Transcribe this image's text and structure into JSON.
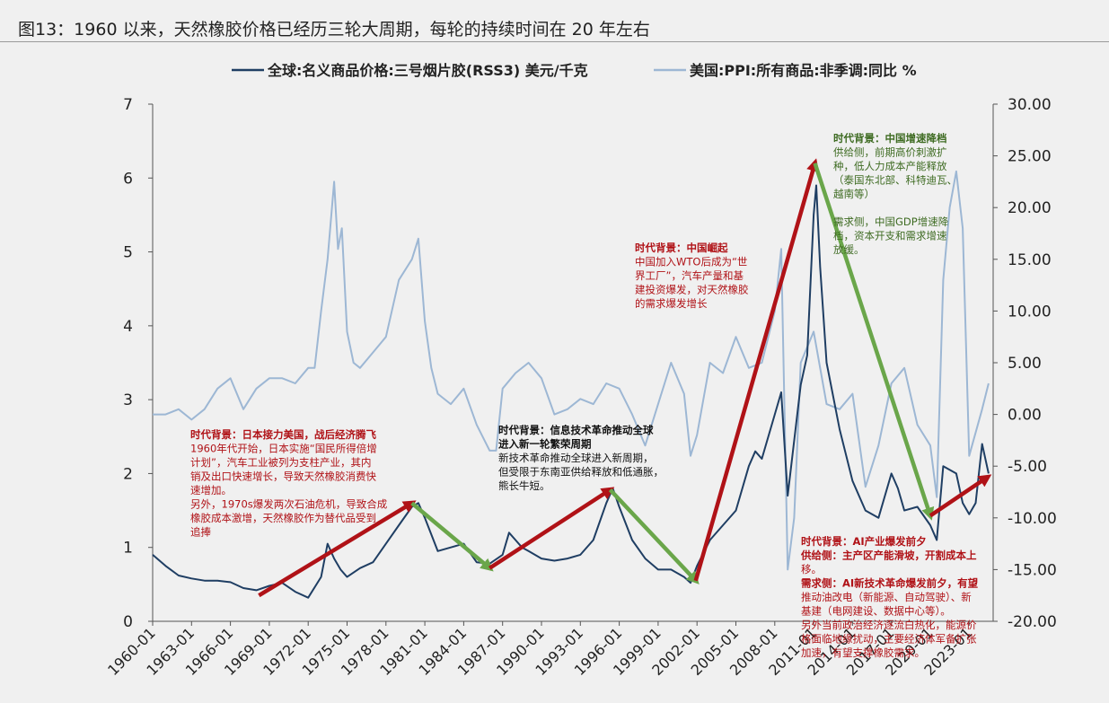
{
  "title": "图13：1960 以来，天然橡胶价格已经历三轮大周期，每轮的持续时间在 20 年左右",
  "colors": {
    "rubber": "#1f3e63",
    "ppi": "#9db7d4",
    "up_arrow": "#b01217",
    "down_arrow": "#6aa64a",
    "red_text": "#b01217",
    "green_text": "#3e6b22",
    "dark_text": "#111111"
  },
  "chart_data": {
    "type": "line",
    "xlabel": "",
    "ylabel": "",
    "y2label": "",
    "categories": [
      "1960-01",
      "1963-01",
      "1966-01",
      "1969-01",
      "1972-01",
      "1975-01",
      "1978-01",
      "1981-01",
      "1984-01",
      "1987-01",
      "1990-01",
      "1993-01",
      "1996-01",
      "1999-01",
      "2002-01",
      "2005-01",
      "2008-01",
      "2011-01",
      "2014-01",
      "2017-01",
      "2020-01",
      "2023-01"
    ],
    "ylim": [
      0,
      7
    ],
    "y_ticks": [
      "0",
      "1",
      "2",
      "3",
      "4",
      "5",
      "6",
      "7"
    ],
    "y2lim": [
      -20,
      30
    ],
    "y2_ticks": [
      "-20.00",
      "-15.00",
      "-10.00",
      "-5.00",
      "0.00",
      "5.00",
      "10.00",
      "15.00",
      "20.00",
      "25.00",
      "30.00"
    ],
    "legend_position": "top",
    "series": [
      {
        "name": "全球:名义商品价格:三号烟片胶(RSS3) 美元/千克",
        "axis": "left",
        "x": [
          1960,
          1961,
          1962,
          1963,
          1964,
          1965,
          1966,
          1967,
          1968,
          1969,
          1970,
          1971,
          1972,
          1973,
          1973.5,
          1974,
          1974.5,
          1975,
          1976,
          1977,
          1978,
          1979,
          1980,
          1980.5,
          1981,
          1982,
          1983,
          1984,
          1985,
          1986,
          1987,
          1987.5,
          1988,
          1988.5,
          1989,
          1990,
          1991,
          1992,
          1993,
          1994,
          1995,
          1995.5,
          1996,
          1997,
          1998,
          1999,
          2000,
          2001,
          2001.5,
          2002,
          2003,
          2004,
          2005,
          2006,
          2006.5,
          2007,
          2008,
          2008.5,
          2009,
          2010,
          2010.5,
          2011,
          2011.2,
          2011.5,
          2012,
          2013,
          2014,
          2015,
          2016,
          2017,
          2017.5,
          2018,
          2019,
          2020,
          2020.5,
          2021,
          2022,
          2022.5,
          2023,
          2023.5,
          2024,
          2024.5
        ],
        "y": [
          0.9,
          0.75,
          0.62,
          0.58,
          0.55,
          0.55,
          0.53,
          0.45,
          0.42,
          0.48,
          0.52,
          0.4,
          0.32,
          0.6,
          1.05,
          0.85,
          0.7,
          0.6,
          0.72,
          0.8,
          1.05,
          1.3,
          1.55,
          1.6,
          1.4,
          0.95,
          1.0,
          1.05,
          0.8,
          0.78,
          0.9,
          1.2,
          1.1,
          1.0,
          0.95,
          0.85,
          0.82,
          0.85,
          0.9,
          1.1,
          1.6,
          1.8,
          1.55,
          1.1,
          0.85,
          0.7,
          0.7,
          0.6,
          0.52,
          0.75,
          1.1,
          1.3,
          1.5,
          2.1,
          2.3,
          2.2,
          2.8,
          3.1,
          1.7,
          3.2,
          3.6,
          5.5,
          5.9,
          4.8,
          3.5,
          2.6,
          1.9,
          1.5,
          1.4,
          2.0,
          1.8,
          1.5,
          1.55,
          1.3,
          1.1,
          2.1,
          2.0,
          1.6,
          1.45,
          1.6,
          2.4,
          2.0
        ]
      },
      {
        "name": "美国:PPI:所有商品:非季调:同比 %",
        "axis": "right",
        "x": [
          1960,
          1961,
          1962,
          1963,
          1964,
          1965,
          1966,
          1967,
          1968,
          1969,
          1970,
          1971,
          1972,
          1972.5,
          1973,
          1973.5,
          1974,
          1974.3,
          1974.6,
          1975,
          1975.5,
          1976,
          1977,
          1978,
          1979,
          1980,
          1980.5,
          1981,
          1981.5,
          1982,
          1983,
          1984,
          1985,
          1986,
          1986.5,
          1987,
          1988,
          1989,
          1990,
          1991,
          1992,
          1993,
          1994,
          1995,
          1996,
          1997,
          1998,
          1999,
          2000,
          2001,
          2001.5,
          2002,
          2003,
          2004,
          2005,
          2006,
          2007,
          2008,
          2008.5,
          2009,
          2009.5,
          2010,
          2011,
          2012,
          2013,
          2014,
          2015,
          2016,
          2017,
          2018,
          2019,
          2020,
          2020.5,
          2021,
          2021.5,
          2022,
          2022.5,
          2023,
          2024,
          2024.5
        ],
        "y": [
          0,
          0,
          0.5,
          -0.5,
          0.5,
          2.5,
          3.5,
          0.5,
          2.5,
          3.5,
          3.5,
          3.0,
          4.5,
          4.5,
          10.0,
          15.0,
          22.5,
          16.0,
          18.0,
          8.0,
          5.0,
          4.5,
          6.0,
          7.5,
          13.0,
          15.0,
          17.0,
          9.0,
          4.5,
          2.0,
          1.0,
          2.5,
          -1.0,
          -3.5,
          -3.5,
          2.5,
          4.0,
          5.0,
          3.5,
          0.0,
          0.5,
          1.5,
          1.0,
          3.0,
          2.5,
          0.0,
          -3.0,
          1.0,
          5.0,
          2.0,
          -4.0,
          -2.0,
          5.0,
          4.0,
          7.5,
          4.5,
          5.0,
          10.0,
          16.0,
          -15.0,
          -10.0,
          5.0,
          8.0,
          1.0,
          0.5,
          2.0,
          -7.0,
          -3.0,
          3.0,
          4.5,
          -1.0,
          -3.0,
          -8.0,
          13.0,
          20.0,
          23.5,
          18.0,
          -4.0,
          0.5,
          3.0
        ]
      }
    ],
    "arrows": [
      {
        "kind": "up",
        "x1": 1968.2,
        "y1": 0.35,
        "x2": 1980.0,
        "y2": 1.6
      },
      {
        "kind": "down",
        "x1": 1980.0,
        "y1": 1.6,
        "x2": 1986.0,
        "y2": 0.72
      },
      {
        "kind": "up",
        "x1": 1986.0,
        "y1": 0.72,
        "x2": 1995.3,
        "y2": 1.78
      },
      {
        "kind": "down",
        "x1": 1995.3,
        "y1": 1.78,
        "x2": 2001.9,
        "y2": 0.55
      },
      {
        "kind": "up",
        "x1": 2001.9,
        "y1": 0.55,
        "x2": 2011.1,
        "y2": 6.2
      },
      {
        "kind": "down",
        "x1": 2011.1,
        "y1": 6.2,
        "x2": 2020.0,
        "y2": 1.43
      },
      {
        "kind": "up",
        "x1": 2020.0,
        "y1": 1.43,
        "x2": 2024.4,
        "y2": 1.95
      }
    ],
    "annotations": [
      {
        "color": "red",
        "lines": [
          {
            "text": "时代背景：日本接力美国，战后经济腾飞",
            "bold": true
          },
          {
            "text": "1960年代开始，日本实施“国民所得倍增"
          },
          {
            "text": "计划”，汽车工业被列为支柱产业，其内"
          },
          {
            "text": "销及出口快速增长，导致天然橡胶消费快"
          },
          {
            "text": "速增加。"
          },
          {
            "text": "另外，1970s爆发两次石油危机，导致合成"
          },
          {
            "text": "橡胶成本激增，天然橡胶作为替代品受到"
          },
          {
            "text": "追捧"
          }
        ]
      },
      {
        "color": "dark",
        "lines": [
          {
            "text": "时代背景：信息技术革命推动全球",
            "bold": true
          },
          {
            "text": "进入新一轮繁荣周期",
            "bold": true
          },
          {
            "text": "新技术革命推动全球进入新周期，"
          },
          {
            "text": "但受限于东南亚供给释放和低通胀，"
          },
          {
            "text": "熊长牛短。"
          }
        ]
      },
      {
        "color": "red",
        "lines": [
          {
            "text": "时代背景：中国崛起",
            "bold": true
          },
          {
            "text": "中国加入WTO后成为“世"
          },
          {
            "text": "界工厂”，汽车产量和基"
          },
          {
            "text": "建投资爆发，对天然橡胶"
          },
          {
            "text": "的需求爆发增长"
          }
        ]
      },
      {
        "color": "green",
        "lines": [
          {
            "text": "时代背景：中国增速降档",
            "bold": true
          },
          {
            "text": "供给侧，前期高价刺激扩"
          },
          {
            "text": "种，低人力成本产能释放"
          },
          {
            "text": "（泰国东北部、科特迪瓦、"
          },
          {
            "text": "越南等）"
          },
          {
            "text": ""
          },
          {
            "text": "需求侧，中国GDP增速降"
          },
          {
            "text": "档，资本开支和需求增速"
          },
          {
            "text": "放缓。"
          }
        ]
      },
      {
        "color": "red",
        "lines": [
          {
            "text": "时代背景：AI产业爆发前夕",
            "bold": true
          },
          {
            "text": "供给侧：主产区产能滑坡，开割成本上",
            "bold": true
          },
          {
            "text": "移。"
          },
          {
            "text": "需求侧：AI新技术革命爆发前夕，有望",
            "bold": true
          },
          {
            "text": "推动油改电（新能源、自动驾驶）、新"
          },
          {
            "text": "基建（电网建设、数据中心等）。"
          },
          {
            "text": "另外当前政治经济逐流白热化，能源价"
          },
          {
            "text": "格面临地缘扰动，主要经济体军备扩张"
          },
          {
            "text": "加速，有望支撑橡胶需求。"
          }
        ]
      }
    ]
  }
}
